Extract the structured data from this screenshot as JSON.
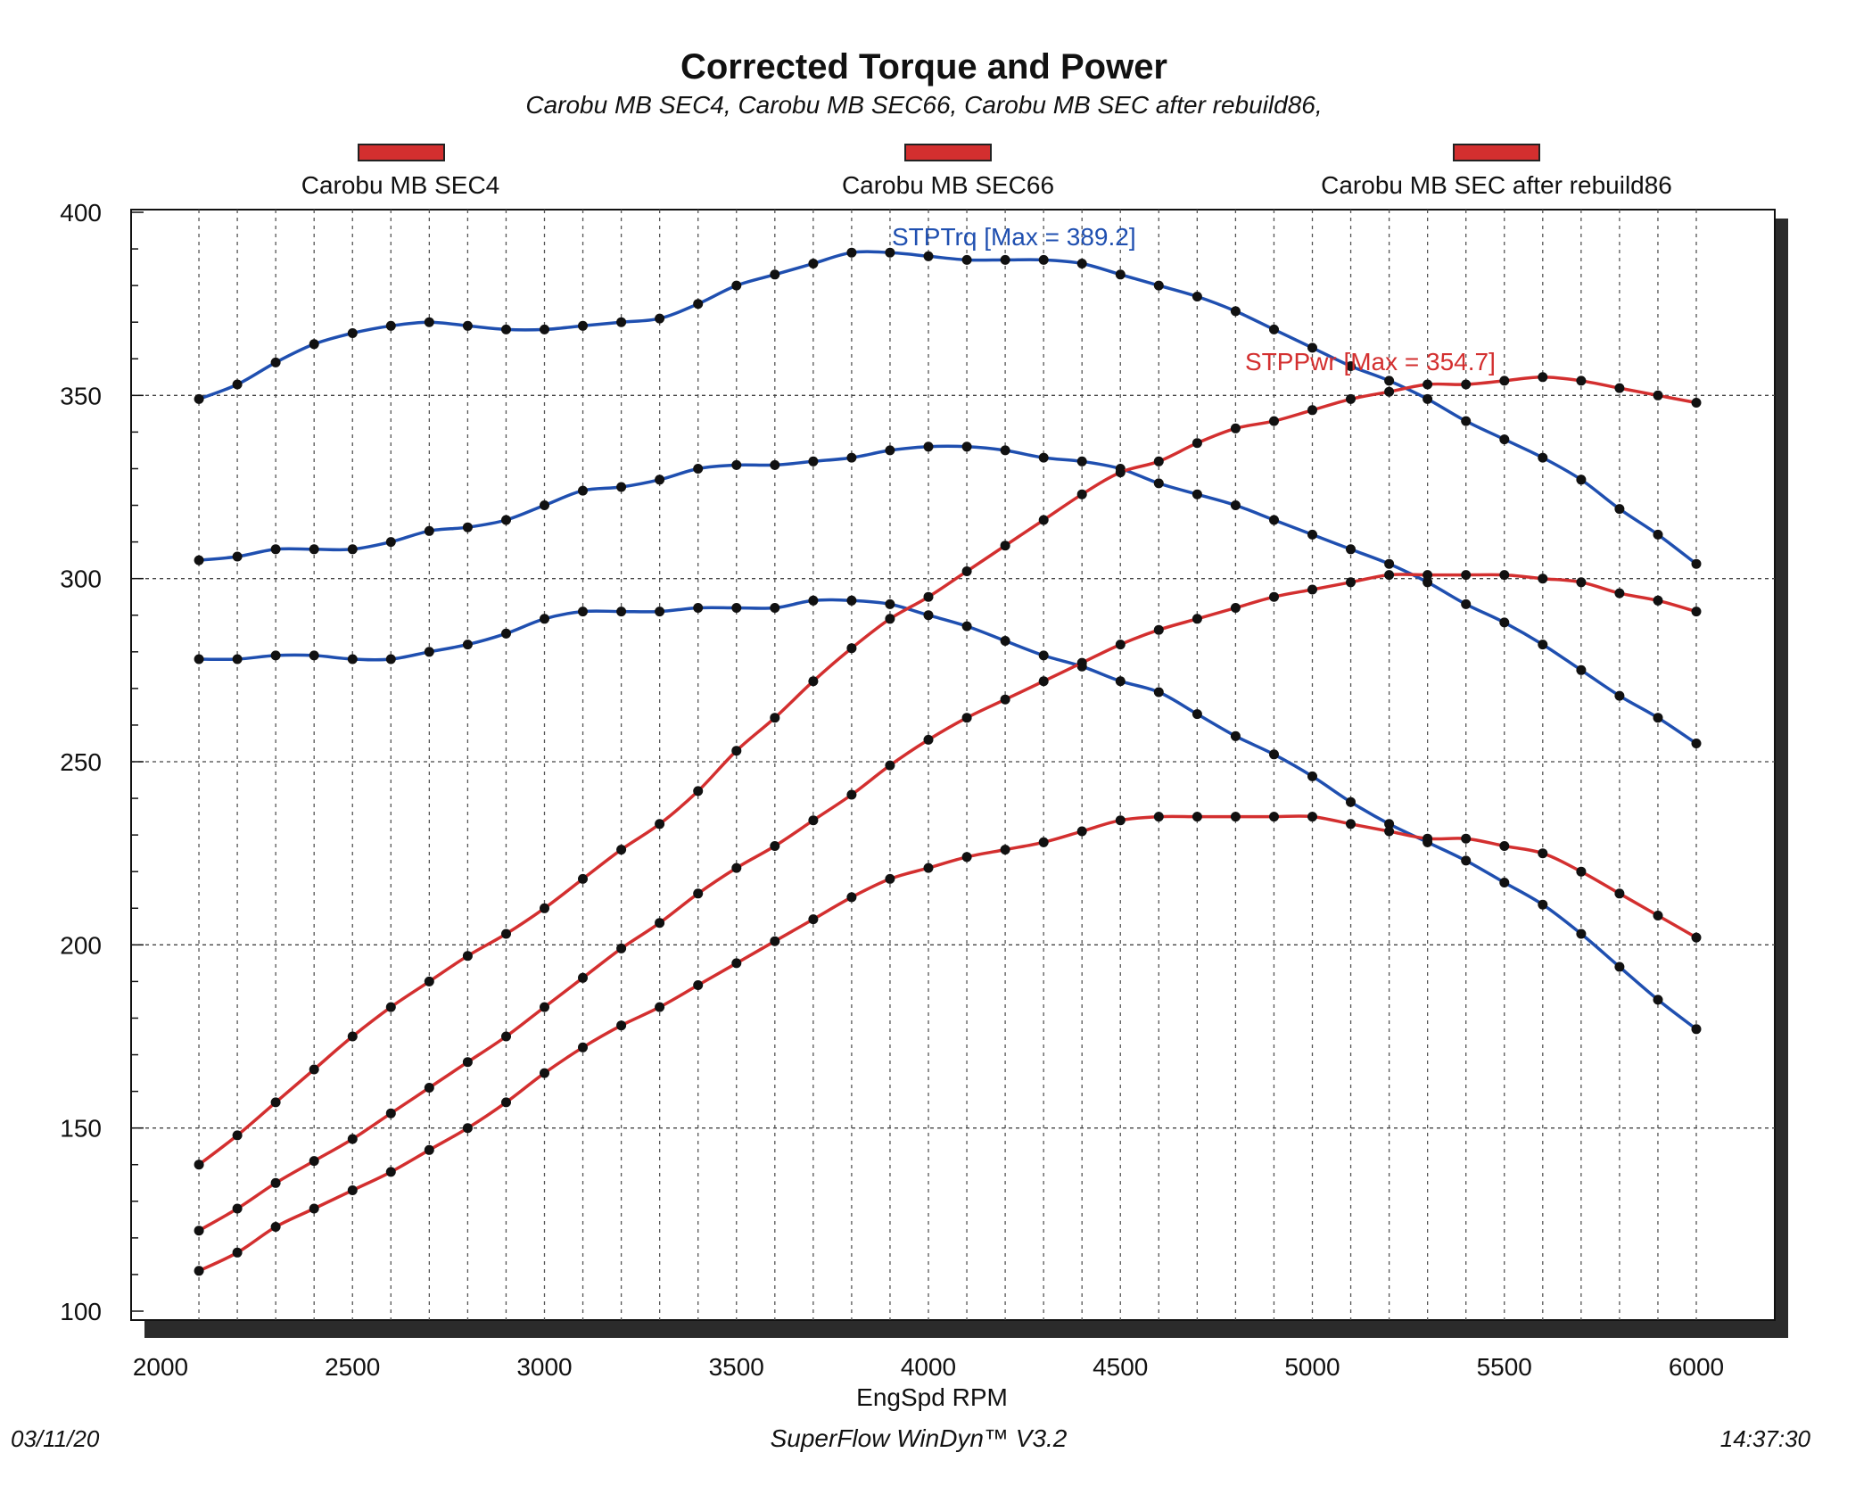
{
  "chart_data": {
    "type": "line",
    "title": "Corrected Torque and Power",
    "subtitle": "Carobu MB SEC4, Carobu MB SEC66, Carobu MB SEC after rebuild86,",
    "xlabel": "EngSpd RPM",
    "ylabel": "",
    "xlim": [
      2000,
      6000
    ],
    "ylim": [
      100,
      400
    ],
    "xticks": [
      2000,
      2500,
      3000,
      3500,
      4000,
      4500,
      5000,
      5500,
      6000
    ],
    "yticks": [
      100,
      150,
      200,
      250,
      300,
      350,
      400
    ],
    "grid": true,
    "legend": [
      "Carobu MB SEC4",
      "Carobu MB SEC66",
      "Carobu MB SEC after rebuild86"
    ],
    "legend_color": "#d32f2f",
    "annotations": {
      "torque_max": "STPTrq [Max = 389.2]",
      "power_max": "STPPwr [Max = 354.7]"
    },
    "x": [
      2100,
      2200,
      2300,
      2400,
      2500,
      2600,
      2700,
      2800,
      2900,
      3000,
      3100,
      3200,
      3300,
      3400,
      3500,
      3600,
      3700,
      3800,
      3900,
      4000,
      4100,
      4200,
      4300,
      4400,
      4500,
      4600,
      4700,
      4800,
      4900,
      5000,
      5100,
      5200,
      5300,
      5400,
      5500,
      5600,
      5700,
      5800,
      5900,
      6000
    ],
    "series": [
      {
        "name": "Torque SEC after rebuild86",
        "kind": "torque",
        "color": "#1f4fb0",
        "values": [
          349,
          353,
          359,
          364,
          367,
          369,
          370,
          369,
          368,
          368,
          369,
          370,
          371,
          375,
          380,
          383,
          386,
          389,
          389,
          388,
          387,
          387,
          387,
          386,
          383,
          380,
          377,
          373,
          368,
          363,
          358,
          354,
          349,
          343,
          338,
          333,
          327,
          319,
          312,
          304
        ]
      },
      {
        "name": "Torque SEC66",
        "kind": "torque",
        "color": "#1f4fb0",
        "values": [
          305,
          306,
          308,
          308,
          308,
          310,
          313,
          314,
          316,
          320,
          324,
          325,
          327,
          330,
          331,
          331,
          332,
          333,
          335,
          336,
          336,
          335,
          333,
          332,
          330,
          326,
          323,
          320,
          316,
          312,
          308,
          304,
          299,
          293,
          288,
          282,
          275,
          268,
          262,
          255
        ]
      },
      {
        "name": "Torque SEC4",
        "kind": "torque",
        "color": "#1f4fb0",
        "values": [
          278,
          278,
          279,
          279,
          278,
          278,
          280,
          282,
          285,
          289,
          291,
          291,
          291,
          292,
          292,
          292,
          294,
          294,
          293,
          290,
          287,
          283,
          279,
          276,
          272,
          269,
          263,
          257,
          252,
          246,
          239,
          233,
          228,
          223,
          217,
          211,
          203,
          194,
          185,
          177
        ]
      },
      {
        "name": "Power SEC after rebuild86",
        "kind": "power",
        "color": "#d32f2f",
        "values": [
          140,
          148,
          157,
          166,
          175,
          183,
          190,
          197,
          203,
          210,
          218,
          226,
          233,
          242,
          253,
          262,
          272,
          281,
          289,
          295,
          302,
          309,
          316,
          323,
          329,
          332,
          337,
          341,
          343,
          346,
          349,
          351,
          353,
          353,
          354,
          355,
          354,
          352,
          350,
          348
        ]
      },
      {
        "name": "Power SEC66",
        "kind": "power",
        "color": "#d32f2f",
        "values": [
          122,
          128,
          135,
          141,
          147,
          154,
          161,
          168,
          175,
          183,
          191,
          199,
          206,
          214,
          221,
          227,
          234,
          241,
          249,
          256,
          262,
          267,
          272,
          277,
          282,
          286,
          289,
          292,
          295,
          297,
          299,
          301,
          301,
          301,
          301,
          300,
          299,
          296,
          294,
          291
        ]
      },
      {
        "name": "Power SEC4",
        "kind": "power",
        "color": "#d32f2f",
        "values": [
          111,
          116,
          123,
          128,
          133,
          138,
          144,
          150,
          157,
          165,
          172,
          178,
          183,
          189,
          195,
          201,
          207,
          213,
          218,
          221,
          224,
          226,
          228,
          231,
          234,
          235,
          235,
          235,
          235,
          235,
          233,
          231,
          229,
          229,
          227,
          225,
          220,
          214,
          208,
          202
        ]
      }
    ]
  },
  "footer": {
    "date": "03/11/20",
    "software": "SuperFlow WinDyn™ V3.2",
    "time": "14:37:30"
  }
}
